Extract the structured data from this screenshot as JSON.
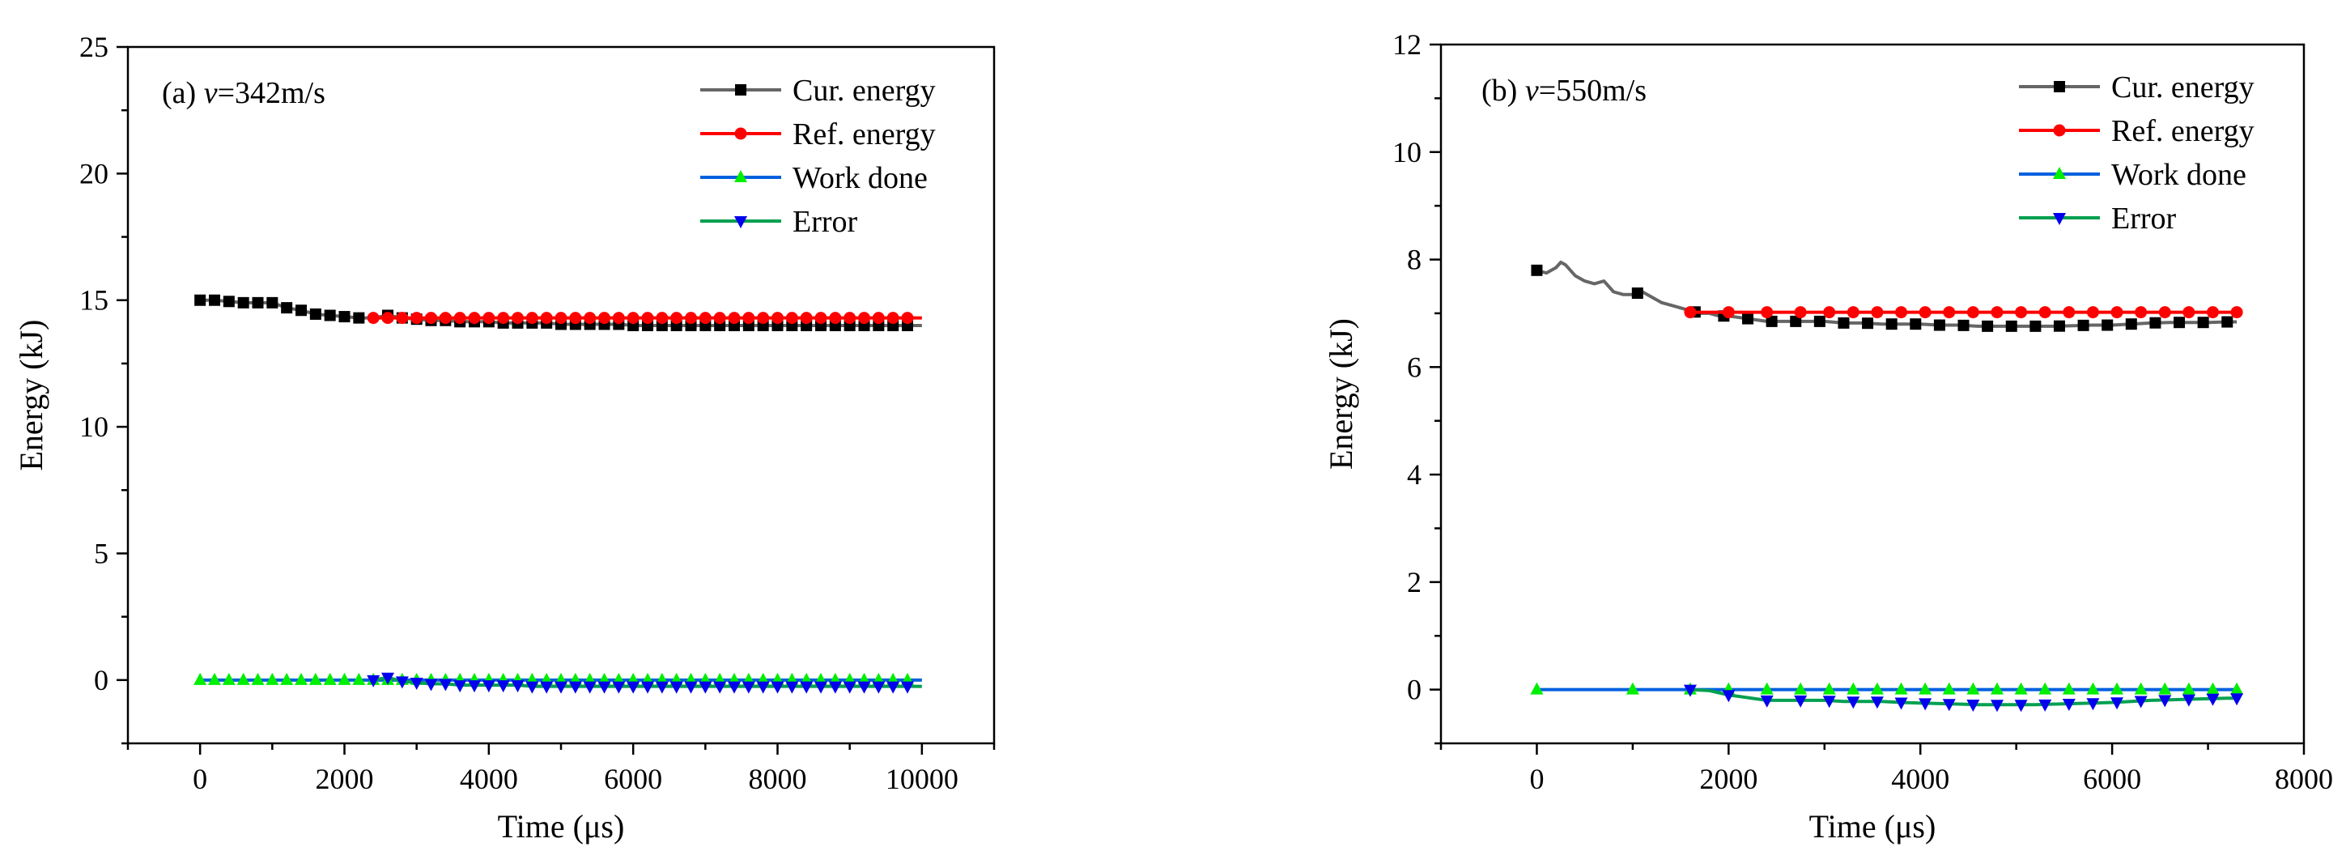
{
  "chart_data": [
    {
      "type": "line",
      "title": "(a) v=342m/s",
      "title_prefix": "(a) ",
      "title_var": "v",
      "title_rest": "=342m/s",
      "xlabel": "Time (μs)",
      "ylabel": "Energy (kJ)",
      "xlim": [
        -1000,
        11000
      ],
      "ylim": [
        -2.5,
        25
      ],
      "xticks": [
        0,
        2000,
        4000,
        6000,
        8000,
        10000
      ],
      "xtick_labels": [
        "0",
        "2000",
        "4000",
        "6000",
        "8000",
        "10000"
      ],
      "yticks": [
        0,
        5,
        10,
        15,
        20,
        25
      ],
      "ytick_labels": [
        "0",
        "5",
        "10",
        "15",
        "20",
        "25"
      ],
      "legend_position": "top-right",
      "series": [
        {
          "name": "Cur. energy",
          "line_color": "#666666",
          "marker_color": "#000000",
          "marker": "square",
          "x": [
            0,
            200,
            400,
            600,
            800,
            1000,
            1200,
            1400,
            1600,
            1800,
            2000,
            2200,
            2400,
            2600,
            2800,
            3000,
            3200,
            3400,
            3600,
            3800,
            4000,
            4200,
            4400,
            4600,
            4800,
            5000,
            5200,
            5400,
            5600,
            5800,
            6000,
            6200,
            6400,
            6600,
            6800,
            7000,
            7200,
            7400,
            7600,
            7800,
            8000,
            8200,
            8400,
            8600,
            8800,
            9000,
            9200,
            9400,
            9600,
            9800,
            10000
          ],
          "y": [
            15.0,
            15.0,
            14.95,
            14.9,
            14.9,
            14.9,
            14.7,
            14.6,
            14.45,
            14.4,
            14.35,
            14.3,
            14.3,
            14.4,
            14.3,
            14.25,
            14.2,
            14.2,
            14.15,
            14.15,
            14.15,
            14.1,
            14.1,
            14.1,
            14.1,
            14.05,
            14.05,
            14.05,
            14.05,
            14.05,
            14.0,
            14.0,
            14.0,
            14.0,
            14.0,
            14.0,
            14.0,
            14.0,
            14.0,
            14.0,
            14.0,
            14.0,
            14.0,
            14.0,
            14.0,
            14.0,
            14.0,
            14.0,
            14.0,
            14.0,
            14.0
          ],
          "marker_x": [
            0,
            200,
            400,
            600,
            800,
            1000,
            1200,
            1400,
            1600,
            1800,
            2000,
            2200,
            2600,
            2800,
            3000,
            3200,
            3400,
            3600,
            3800,
            4000,
            4200,
            4400,
            4600,
            4800,
            5000,
            5200,
            5400,
            5600,
            5800,
            6000,
            6200,
            6400,
            6600,
            6800,
            7000,
            7200,
            7400,
            7600,
            7800,
            8000,
            8200,
            8400,
            8600,
            8800,
            9000,
            9200,
            9400,
            9600,
            9800
          ]
        },
        {
          "name": "Ref. energy",
          "line_color": "#ff0000",
          "marker_color": "#ff0000",
          "marker": "circle",
          "x": [
            2400,
            10000
          ],
          "y": [
            14.3,
            14.3
          ],
          "marker_x": [
            2400,
            2600,
            2800,
            3000,
            3200,
            3400,
            3600,
            3800,
            4000,
            4200,
            4400,
            4600,
            4800,
            5000,
            5200,
            5400,
            5600,
            5800,
            6000,
            6200,
            6400,
            6600,
            6800,
            7000,
            7200,
            7400,
            7600,
            7800,
            8000,
            8200,
            8400,
            8600,
            8800,
            9000,
            9200,
            9400,
            9600,
            9800
          ]
        },
        {
          "name": "Work done",
          "line_color": "#0060df",
          "marker_color": "#00ee00",
          "marker": "triangle-up",
          "x": [
            0,
            10000
          ],
          "y": [
            0.0,
            0.0
          ],
          "marker_x": [
            0,
            200,
            400,
            600,
            800,
            1000,
            1200,
            1400,
            1600,
            1800,
            2000,
            2200,
            2400,
            2600,
            2800,
            3000,
            3200,
            3400,
            3600,
            3800,
            4000,
            4200,
            4400,
            4600,
            4800,
            5000,
            5200,
            5400,
            5600,
            5800,
            6000,
            6200,
            6400,
            6600,
            6800,
            7000,
            7200,
            7400,
            7600,
            7800,
            8000,
            8200,
            8400,
            8600,
            8800,
            9000,
            9200,
            9400,
            9600,
            9800
          ]
        },
        {
          "name": "Error",
          "line_color": "#00a050",
          "marker_color": "#0000ee",
          "marker": "triangle-down",
          "x": [
            2400,
            2600,
            2800,
            3000,
            3200,
            3400,
            3600,
            3800,
            4000,
            4200,
            4400,
            4600,
            4800,
            5000,
            5200,
            5400,
            5600,
            5800,
            6000,
            6200,
            6400,
            6600,
            6800,
            7000,
            7200,
            7400,
            7600,
            7800,
            8000,
            8200,
            8400,
            8600,
            8800,
            9000,
            9200,
            9400,
            9600,
            9800,
            10000
          ],
          "y": [
            0.0,
            0.1,
            -0.05,
            -0.1,
            -0.15,
            -0.15,
            -0.2,
            -0.2,
            -0.2,
            -0.2,
            -0.2,
            -0.25,
            -0.25,
            -0.25,
            -0.25,
            -0.25,
            -0.25,
            -0.25,
            -0.25,
            -0.25,
            -0.25,
            -0.25,
            -0.25,
            -0.25,
            -0.25,
            -0.25,
            -0.25,
            -0.25,
            -0.25,
            -0.25,
            -0.25,
            -0.25,
            -0.25,
            -0.25,
            -0.25,
            -0.25,
            -0.25,
            -0.25,
            -0.25
          ],
          "marker_x": [
            2400,
            2600,
            2800,
            3000,
            3200,
            3400,
            3600,
            3800,
            4000,
            4200,
            4400,
            4600,
            4800,
            5000,
            5200,
            5400,
            5600,
            5800,
            6000,
            6200,
            6400,
            6600,
            6800,
            7000,
            7200,
            7400,
            7600,
            7800,
            8000,
            8200,
            8400,
            8600,
            8800,
            9000,
            9200,
            9400,
            9600,
            9800
          ]
        }
      ]
    },
    {
      "type": "line",
      "title": "(b) v=550m/s",
      "title_prefix": "(b) ",
      "title_var": "v",
      "title_rest": "=550m/s",
      "xlabel": "Time (μs)",
      "ylabel": "Energy (kJ)",
      "xlim": [
        -1000,
        8000
      ],
      "ylim": [
        -1,
        12
      ],
      "xticks": [
        0,
        2000,
        4000,
        6000,
        8000
      ],
      "xtick_labels": [
        "0",
        "2000",
        "4000",
        "6000",
        "8000"
      ],
      "yticks": [
        0,
        2,
        4,
        6,
        8,
        10,
        12
      ],
      "ytick_labels": [
        "0",
        "2",
        "4",
        "6",
        "8",
        "10",
        "12"
      ],
      "legend_position": "top-right",
      "series": [
        {
          "name": "Cur. energy",
          "line_color": "#666666",
          "marker_color": "#000000",
          "marker": "square",
          "x": [
            0,
            100,
            200,
            250,
            300,
            400,
            500,
            600,
            700,
            800,
            900,
            1000,
            1100,
            1200,
            1300,
            1400,
            1500,
            1600,
            1700,
            1800,
            1900,
            2000,
            2200,
            2400,
            2600,
            2800,
            3000,
            3200,
            3400,
            3600,
            3800,
            4000,
            4200,
            4400,
            4600,
            4800,
            5000,
            5200,
            5400,
            5600,
            5800,
            6000,
            6200,
            6400,
            6600,
            6800,
            7000,
            7200,
            7300
          ],
          "y": [
            7.8,
            7.75,
            7.85,
            7.95,
            7.9,
            7.7,
            7.6,
            7.55,
            7.6,
            7.4,
            7.35,
            7.35,
            7.4,
            7.3,
            7.2,
            7.15,
            7.1,
            7.05,
            7.0,
            7.0,
            6.95,
            6.95,
            6.9,
            6.85,
            6.85,
            6.85,
            6.85,
            6.82,
            6.82,
            6.8,
            6.8,
            6.8,
            6.78,
            6.78,
            6.76,
            6.76,
            6.76,
            6.76,
            6.76,
            6.77,
            6.78,
            6.78,
            6.8,
            6.82,
            6.83,
            6.83,
            6.83,
            6.84,
            6.84
          ],
          "marker_x": [
            0,
            1050,
            1650,
            1950,
            2200,
            2450,
            2700,
            2950,
            3200,
            3450,
            3700,
            3950,
            4200,
            4450,
            4700,
            4950,
            5200,
            5450,
            5700,
            5950,
            6200,
            6450,
            6700,
            6950,
            7200
          ]
        },
        {
          "name": "Ref. energy",
          "line_color": "#ff0000",
          "marker_color": "#ff0000",
          "marker": "circle",
          "x": [
            1600,
            7300
          ],
          "y": [
            7.02,
            7.02
          ],
          "marker_x": [
            1600,
            2000,
            2400,
            2750,
            3050,
            3300,
            3550,
            3800,
            4050,
            4300,
            4550,
            4800,
            5050,
            5300,
            5550,
            5800,
            6050,
            6300,
            6550,
            6800,
            7050,
            7300
          ]
        },
        {
          "name": "Work done",
          "line_color": "#0060df",
          "marker_color": "#00ee00",
          "marker": "triangle-up",
          "x": [
            0,
            7300
          ],
          "y": [
            0.0,
            0.0
          ],
          "marker_x": [
            0,
            1000,
            1600,
            2000,
            2400,
            2750,
            3050,
            3300,
            3550,
            3800,
            4050,
            4300,
            4550,
            4800,
            5050,
            5300,
            5550,
            5800,
            6050,
            6300,
            6550,
            6800,
            7050,
            7300
          ]
        },
        {
          "name": "Error",
          "line_color": "#00a050",
          "marker_color": "#0000ee",
          "marker": "triangle-down",
          "x": [
            1600,
            1800,
            2000,
            2200,
            2400,
            2600,
            2800,
            3000,
            3200,
            3400,
            3600,
            3800,
            4000,
            4200,
            4400,
            4600,
            4800,
            5000,
            5200,
            5400,
            5600,
            5800,
            6000,
            6200,
            6400,
            6600,
            6800,
            7000,
            7200,
            7300
          ],
          "y": [
            0.0,
            -0.02,
            -0.1,
            -0.15,
            -0.2,
            -0.2,
            -0.2,
            -0.2,
            -0.22,
            -0.22,
            -0.22,
            -0.24,
            -0.25,
            -0.26,
            -0.27,
            -0.28,
            -0.28,
            -0.28,
            -0.28,
            -0.27,
            -0.26,
            -0.25,
            -0.24,
            -0.22,
            -0.2,
            -0.19,
            -0.18,
            -0.17,
            -0.16,
            -0.16
          ],
          "marker_x": [
            1600,
            2000,
            2400,
            2750,
            3050,
            3300,
            3550,
            3800,
            4050,
            4300,
            4550,
            4800,
            5050,
            5300,
            5550,
            5800,
            6050,
            6300,
            6550,
            6800,
            7050,
            7300
          ]
        }
      ]
    }
  ]
}
